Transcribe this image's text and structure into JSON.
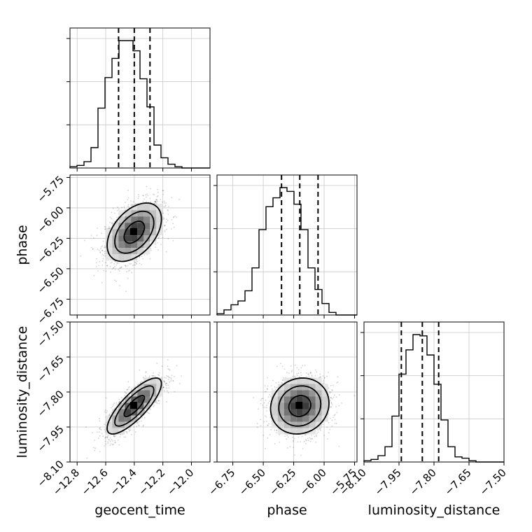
{
  "chart_data": {
    "type": "corner",
    "parameters": [
      {
        "name": "geocent_time",
        "label": "geocent_time",
        "range": [
          -12.85,
          -11.87
        ],
        "ticks": [
          -12.8,
          -12.6,
          -12.4,
          -12.2,
          -12.0
        ],
        "tick_labels": [
          "−12.8",
          "−12.6",
          "−12.4",
          "−12.2",
          "−12.0"
        ],
        "quantiles": [
          -12.51,
          -12.4,
          -12.29
        ],
        "mean": -12.4,
        "sd": 0.095
      },
      {
        "name": "phase",
        "label": "phase",
        "range": [
          -6.88,
          -5.73
        ],
        "ticks": [
          -6.75,
          -6.5,
          -6.25,
          -6.0,
          -5.75
        ],
        "tick_labels": [
          "−6.75",
          "−6.50",
          "−6.25",
          "−6.00",
          "−5.75"
        ],
        "quantiles": [
          -6.35,
          -6.2,
          -6.05
        ],
        "mean": -6.2,
        "sd": 0.12
      },
      {
        "name": "luminosity_distance",
        "label": "luminosity_distance",
        "range": [
          -8.1,
          -7.5
        ],
        "ticks": [
          -8.1,
          -7.95,
          -7.8,
          -7.65,
          -7.5
        ],
        "tick_labels": [
          "−8.10",
          "−7.95",
          "−7.80",
          "−7.65",
          "−7.50"
        ],
        "quantiles": [
          -7.94,
          -7.85,
          -7.78
        ],
        "mean": -7.86,
        "sd": 0.06
      }
    ],
    "histograms": [
      {
        "param": "geocent_time",
        "bin_start": -12.85,
        "bin_width": 0.0488,
        "counts": [
          1,
          2,
          5,
          16,
          47,
          71,
          86,
          100,
          100,
          92,
          70,
          48,
          18,
          8,
          3,
          1,
          0,
          0,
          0,
          0
        ]
      },
      {
        "param": "phase",
        "bin_start": -6.88,
        "bin_width": 0.0575,
        "counts": [
          1,
          4,
          8,
          11,
          19,
          37,
          67,
          85,
          92,
          100,
          97,
          87,
          67,
          37,
          20,
          9,
          2,
          0,
          0,
          0
        ]
      },
      {
        "param": "luminosity_distance",
        "bin_start": -8.1,
        "bin_width": 0.03,
        "counts": [
          1,
          2,
          5,
          12,
          36,
          69,
          88,
          100,
          99,
          84,
          61,
          33,
          12,
          4,
          3,
          1,
          0,
          0,
          0,
          0
        ]
      }
    ],
    "pair_correlations": [
      {
        "x": "geocent_time",
        "y": "phase",
        "rho": 0.45
      },
      {
        "x": "geocent_time",
        "y": "luminosity_distance",
        "rho": 0.8
      },
      {
        "x": "phase",
        "y": "luminosity_distance",
        "rho": 0.1
      }
    ],
    "grid": true
  }
}
